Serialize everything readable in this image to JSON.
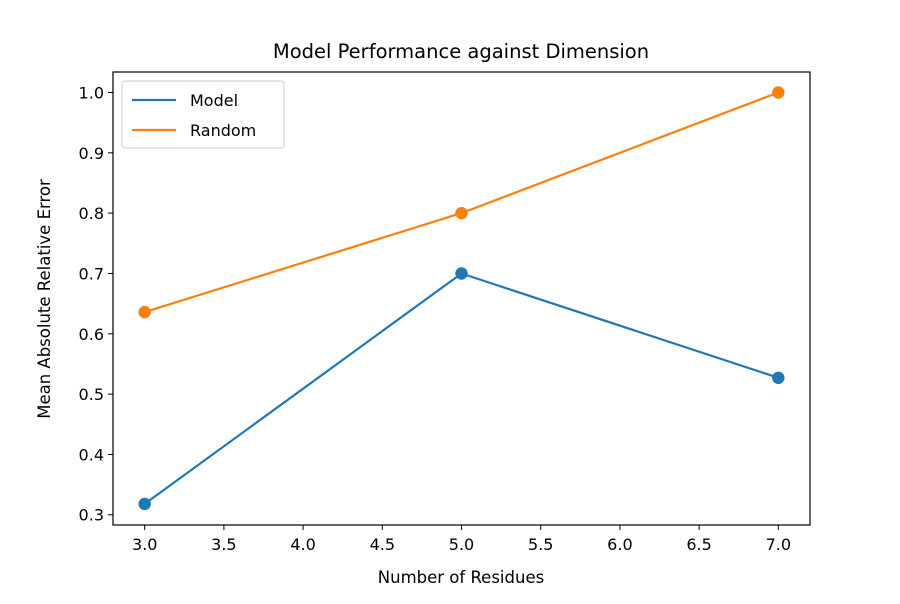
{
  "chart_data": {
    "type": "line",
    "title": "Model Performance against Dimension",
    "xlabel": "Number of Residues",
    "ylabel": "Mean Absolute Relative Error",
    "x": [
      3.0,
      5.0,
      7.0
    ],
    "xlim": [
      2.8,
      7.2
    ],
    "ylim": [
      0.283,
      1.034
    ],
    "xticks": [
      3.0,
      3.5,
      4.0,
      4.5,
      5.0,
      5.5,
      6.0,
      6.5,
      7.0
    ],
    "xtick_labels": [
      "3.0",
      "3.5",
      "4.0",
      "4.5",
      "5.0",
      "5.5",
      "6.0",
      "6.5",
      "7.0"
    ],
    "yticks": [
      0.3,
      0.4,
      0.5,
      0.6,
      0.7,
      0.8,
      0.9,
      1.0
    ],
    "ytick_labels": [
      "0.3",
      "0.4",
      "0.5",
      "0.6",
      "0.7",
      "0.8",
      "0.9",
      "1.0"
    ],
    "grid": false,
    "legend_position": "upper-left",
    "series": [
      {
        "name": "Model",
        "values": [
          0.318,
          0.7,
          0.527
        ],
        "color": "#1f77b4"
      },
      {
        "name": "Random",
        "values": [
          0.636,
          0.8,
          1.0
        ],
        "color": "#ff7f0e"
      }
    ]
  }
}
